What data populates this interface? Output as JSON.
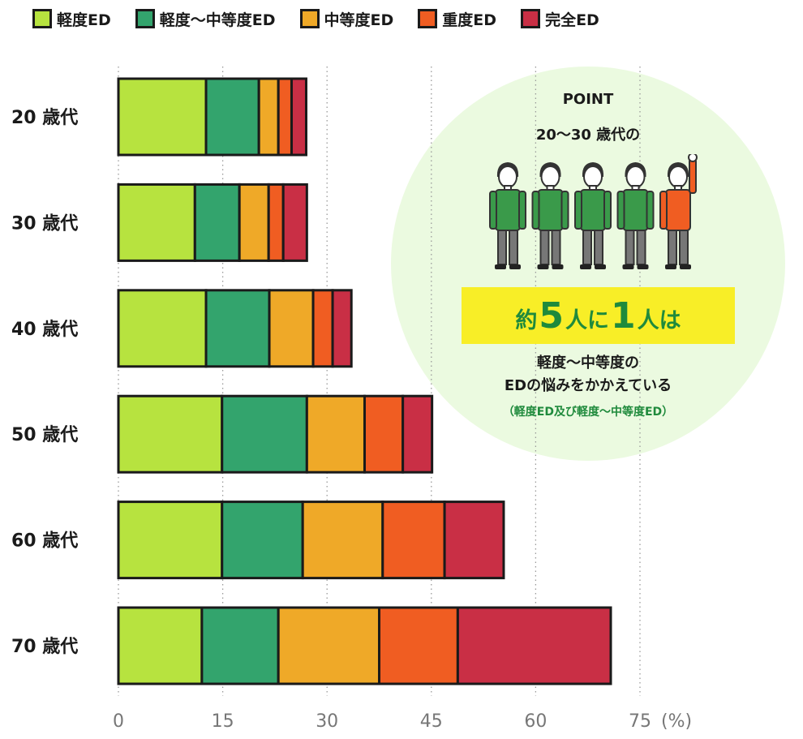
{
  "colors": {
    "axis_text": "#1a1a1a",
    "tick_text": "#777777",
    "grid": "#9a9a9a",
    "outline": "#1a1a1a",
    "accent_green": "#1f8a3c",
    "highlight": "#f8ee27",
    "point_bg": "#ebfae0"
  },
  "legend": {
    "items": [
      {
        "label": "軽度ED",
        "color": "#b7e33f"
      },
      {
        "label": "軽度〜中等度ED",
        "color": "#33a46d"
      },
      {
        "label": "中等度ED",
        "color": "#efa928"
      },
      {
        "label": "重度ED",
        "color": "#f05d22"
      },
      {
        "label": "完全ED",
        "color": "#c92f45"
      }
    ]
  },
  "chart_data": {
    "type": "bar",
    "orientation": "horizontal",
    "stacked": true,
    "categories": [
      "20 歳代",
      "30 歳代",
      "40 歳代",
      "50 歳代",
      "60 歳代",
      "70 歳代"
    ],
    "series": [
      {
        "name": "軽度ED",
        "color": "#b7e33f",
        "values": [
          12.6,
          11.0,
          12.6,
          14.9,
          14.9,
          12.0
        ]
      },
      {
        "name": "軽度〜中等度ED",
        "color": "#33a46d",
        "values": [
          7.6,
          6.4,
          9.1,
          12.2,
          11.6,
          11.0
        ]
      },
      {
        "name": "中等度ED",
        "color": "#efa928",
        "values": [
          2.8,
          4.2,
          6.3,
          8.3,
          11.5,
          14.5
        ]
      },
      {
        "name": "重度ED",
        "color": "#f05d22",
        "values": [
          1.9,
          2.1,
          2.8,
          5.5,
          8.9,
          11.3
        ]
      },
      {
        "name": "完全ED",
        "color": "#c92f45",
        "values": [
          2.1,
          3.4,
          2.7,
          4.2,
          8.5,
          22.0
        ]
      }
    ],
    "xlim": [
      0,
      75
    ],
    "xticks": [
      "0",
      "15",
      "30",
      "45",
      "60",
      "75"
    ],
    "xunit": "(%)",
    "grid": "vertical dotted"
  },
  "point": {
    "title": "POINT",
    "subtitle": "20〜30 歳代の",
    "people": {
      "total": 5,
      "highlighted": 1
    },
    "highlight": {
      "text_a": "約",
      "num_a": "5",
      "text_b": "人に",
      "num_b": "1",
      "text_c": "人は"
    },
    "description": [
      "軽度〜中等度の",
      "EDの悩みをかかえている"
    ],
    "note": "（軽度ED及び軽度〜中等度ED）"
  }
}
